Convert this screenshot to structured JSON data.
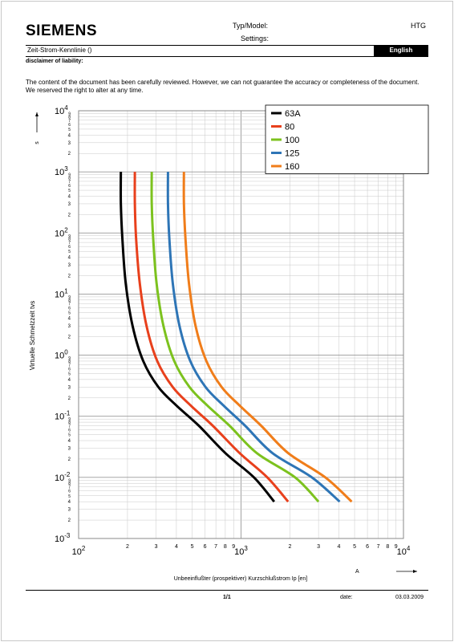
{
  "header": {
    "logo": "SIEMENS",
    "typ_label": "Typ/Model:",
    "typ_value": "HTG",
    "settings_label": "Settings:",
    "title": "Zeit-Strom-Kennlinie ()",
    "language": "English"
  },
  "disclaimer": {
    "heading": "disclaimer of liability:",
    "text": "The content of the document has been carefully reviewed. However, we can not guarantee the accuracy or completeness of the document. We reserved the right to alter at any time."
  },
  "footer": {
    "page": "1/1",
    "date_label": "date:",
    "date_value": "03.03.2009"
  },
  "colors": {
    "grid_major": "#999999",
    "grid_minor": "#c8c8c8"
  },
  "chart_data": {
    "type": "line",
    "log_x": true,
    "log_y": true,
    "xlim": [
      100,
      10000
    ],
    "ylim": [
      0.001,
      10000
    ],
    "x_unit": "A",
    "y_unit": "s",
    "xlabel": "Unbeeinflußter (prospektiver) Kurzschlußstrom Ip [en]",
    "ylabel": "Virtuelle Schmelzzeit tvs",
    "legend_position": "top-right",
    "grid": true,
    "series": [
      {
        "name": "63A",
        "color": "#000000",
        "x": [
          182,
          182,
          186,
          195,
          215,
          250,
          310,
          400,
          550,
          800,
          1200,
          1600
        ],
        "y": [
          1000,
          300,
          80,
          15,
          3,
          0.8,
          0.3,
          0.15,
          0.07,
          0.025,
          0.01,
          0.004
        ]
      },
      {
        "name": "80",
        "color": "#e8401c",
        "x": [
          222,
          222,
          226,
          238,
          262,
          305,
          380,
          490,
          670,
          980,
          1450,
          1950
        ],
        "y": [
          1000,
          300,
          80,
          15,
          3,
          0.8,
          0.3,
          0.15,
          0.07,
          0.025,
          0.01,
          0.004
        ]
      },
      {
        "name": "100",
        "color": "#7cc21e",
        "x": [
          282,
          282,
          288,
          302,
          333,
          388,
          482,
          620,
          850,
          1250,
          2150,
          3000
        ],
        "y": [
          1000,
          300,
          80,
          15,
          3,
          0.8,
          0.3,
          0.15,
          0.07,
          0.025,
          0.01,
          0.004
        ]
      },
      {
        "name": "125",
        "color": "#2e75b6",
        "x": [
          355,
          355,
          362,
          380,
          418,
          487,
          605,
          780,
          1060,
          1560,
          2730,
          4050
        ],
        "y": [
          1000,
          300,
          80,
          15,
          3,
          0.8,
          0.3,
          0.15,
          0.07,
          0.025,
          0.01,
          0.004
        ]
      },
      {
        "name": "160",
        "color": "#f07d1a",
        "x": [
          445,
          445,
          455,
          478,
          525,
          612,
          760,
          980,
          1330,
          1950,
          3300,
          4800
        ],
        "y": [
          1000,
          300,
          80,
          15,
          3,
          0.8,
          0.3,
          0.15,
          0.07,
          0.025,
          0.01,
          0.004
        ]
      }
    ]
  }
}
